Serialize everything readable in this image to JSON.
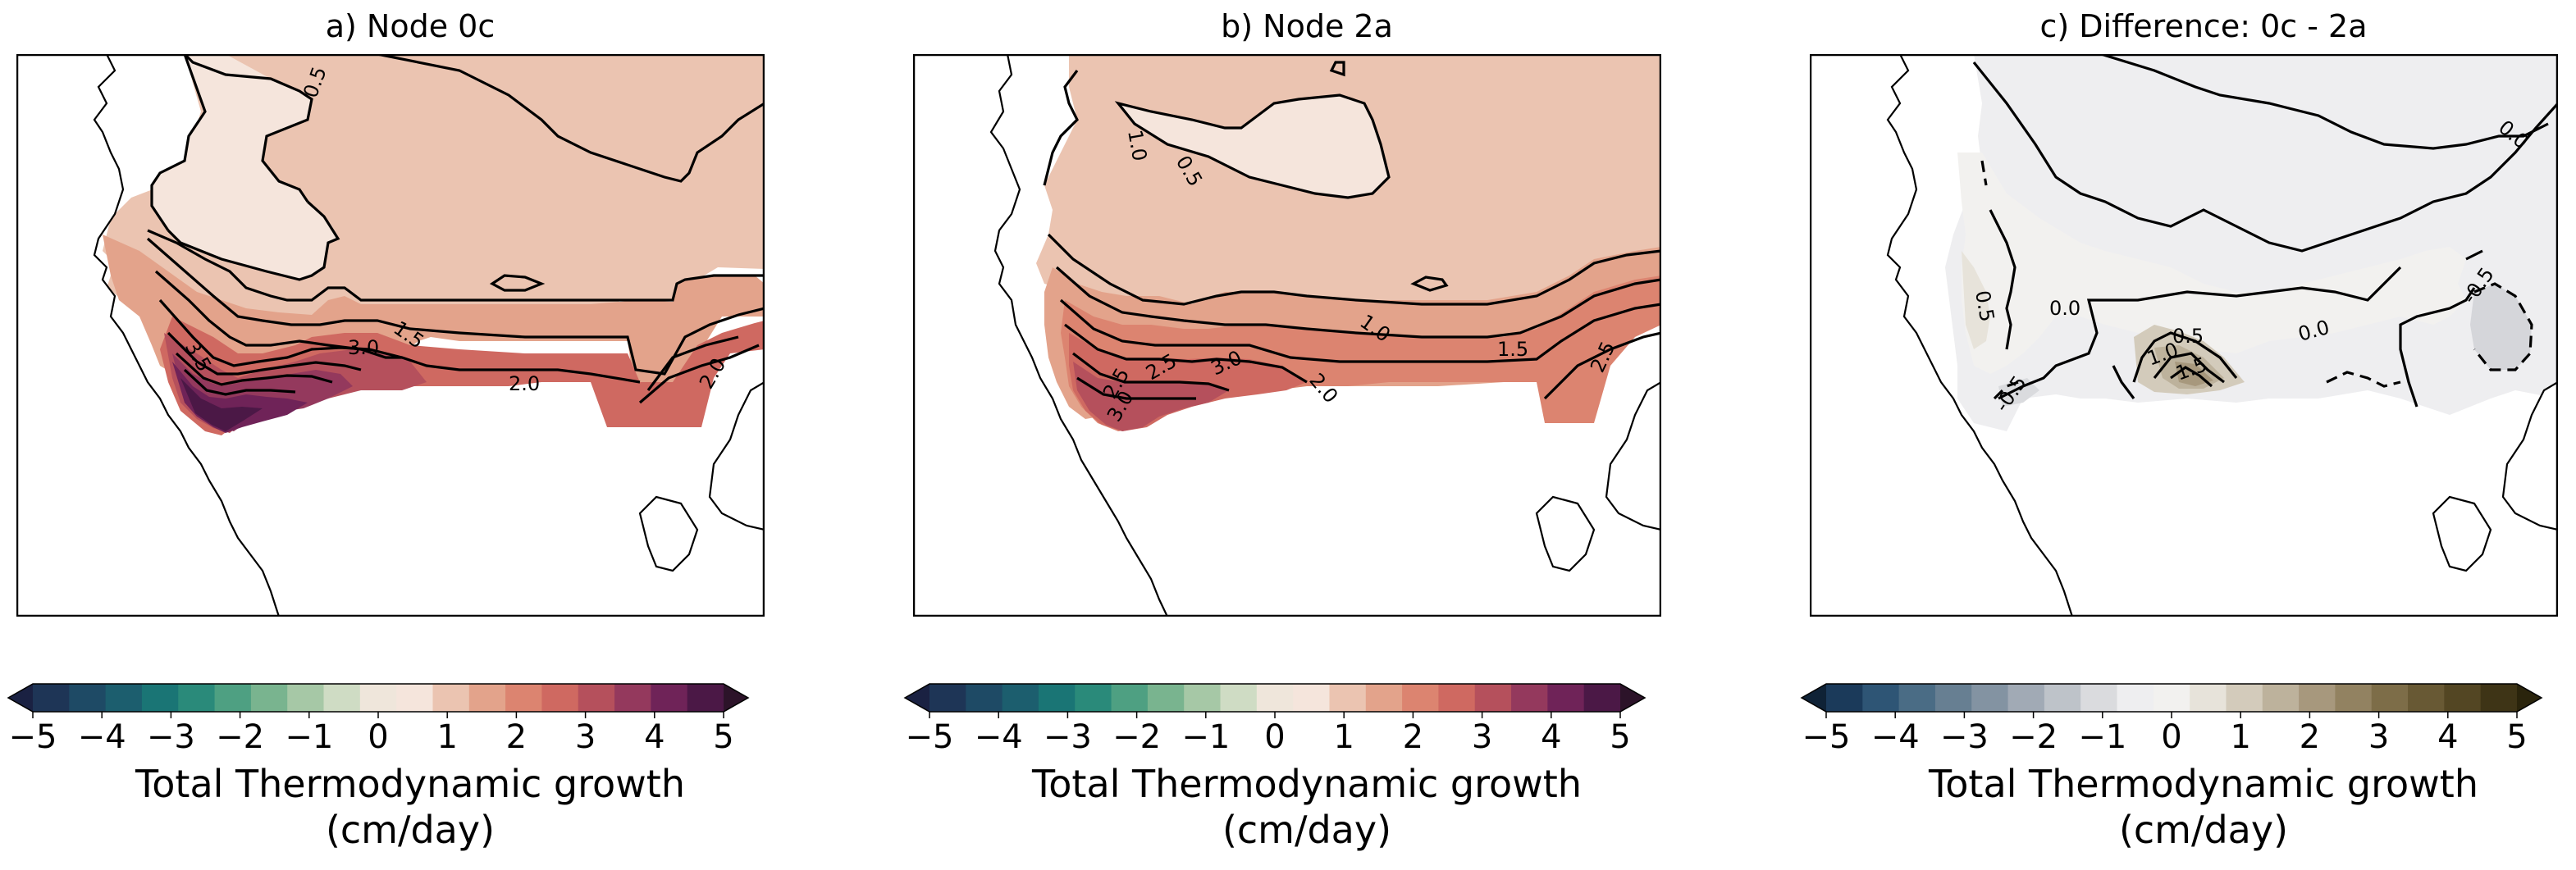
{
  "panels": [
    {
      "title": "a) Node 0c",
      "colorbar_label_1": "Total Thermodynamic growth",
      "colorbar_label_2": "(cm/day)",
      "contour_labels": [
        "0.5",
        "1.5",
        "3.0",
        "3.5",
        "2.0",
        "2.0"
      ],
      "colors": [
        "#1a2142",
        "#1e3556",
        "#1e4a65",
        "#1c5e6e",
        "#1a7575",
        "#2a8a7a",
        "#4ea082",
        "#79b48f",
        "#a6c8a6",
        "#cfdcc4",
        "#efe6db",
        "#f5e5dc",
        "#ebc4b1",
        "#e3a38b",
        "#dc8470",
        "#cf6961",
        "#b5505c",
        "#94395d",
        "#6f2358",
        "#4b1846",
        "#2c1329"
      ]
    },
    {
      "title": "b) Node 2a",
      "colorbar_label_1": "Total Thermodynamic growth",
      "colorbar_label_2": "(cm/day)",
      "contour_labels": [
        "1.0",
        "0.5",
        "1.0",
        "1.5",
        "2.0",
        "2.5",
        "3.0",
        "2.5",
        "3.0",
        "2.5"
      ],
      "colors": [
        "#1a2142",
        "#1e3556",
        "#1e4a65",
        "#1c5e6e",
        "#1a7575",
        "#2a8a7a",
        "#4ea082",
        "#79b48f",
        "#a6c8a6",
        "#cfdcc4",
        "#efe6db",
        "#f5e5dc",
        "#ebc4b1",
        "#e3a38b",
        "#dc8470",
        "#cf6961",
        "#b5505c",
        "#94395d",
        "#6f2358",
        "#4b1846",
        "#2c1329"
      ]
    },
    {
      "title": "c) Difference: 0c - 2a",
      "colorbar_label_1": "Total Thermodynamic growth",
      "colorbar_label_2": "(cm/day)",
      "contour_labels": [
        "0.0",
        "0.5",
        "0.0",
        "0.5",
        "1.0",
        "1.5",
        "0.0",
        "-0.5",
        "-0.5"
      ],
      "colors": [
        "#0f2236",
        "#1b3a5a",
        "#2e5575",
        "#4a6c85",
        "#677f92",
        "#8393a2",
        "#a1aab5",
        "#bec3c9",
        "#dadbde",
        "#eeeef0",
        "#f2f1ef",
        "#e7e3da",
        "#d3cbbb",
        "#bdb29c",
        "#a7987d",
        "#928261",
        "#7d6d48",
        "#685934",
        "#534623",
        "#3e3416",
        "#2a240c"
      ]
    }
  ],
  "chart_data": [
    {
      "type": "contour",
      "title": "a) Node 0c",
      "colorbar": {
        "label": "Total Thermodynamic growth (cm/day)",
        "ticks": [
          -5,
          -4,
          -3,
          -2,
          -1,
          0,
          1,
          2,
          3,
          4,
          5
        ],
        "range": [
          -5,
          5
        ],
        "extend": "both"
      },
      "contour_levels_labeled": [
        0.5,
        1.5,
        2.0,
        3.0,
        3.5
      ],
      "value_range_shown": [
        0.5,
        4.5
      ]
    },
    {
      "type": "contour",
      "title": "b) Node 2a",
      "colorbar": {
        "label": "Total Thermodynamic growth (cm/day)",
        "ticks": [
          -5,
          -4,
          -3,
          -2,
          -1,
          0,
          1,
          2,
          3,
          4,
          5
        ],
        "range": [
          -5,
          5
        ],
        "extend": "both"
      },
      "contour_levels_labeled": [
        0.5,
        1.0,
        1.5,
        2.0,
        2.5,
        3.0
      ],
      "value_range_shown": [
        0.5,
        3.5
      ]
    },
    {
      "type": "contour",
      "title": "c) Difference: 0c - 2a",
      "colorbar": {
        "label": "Total Thermodynamic growth (cm/day)",
        "ticks": [
          -5,
          -4,
          -3,
          -2,
          -1,
          0,
          1,
          2,
          3,
          4,
          5
        ],
        "range": [
          -5,
          5
        ],
        "extend": "both"
      },
      "contour_levels_labeled": [
        -0.5,
        0.0,
        0.5,
        1.0,
        1.5
      ],
      "value_range_shown": [
        -1.0,
        2.0
      ]
    }
  ],
  "colorbar_ticks": [
    "−5",
    "−4",
    "−3",
    "−2",
    "−1",
    "0",
    "1",
    "2",
    "3",
    "4",
    "5"
  ]
}
